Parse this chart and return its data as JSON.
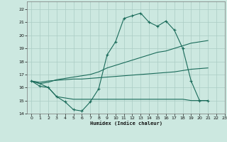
{
  "xlabel": "Humidex (Indice chaleur)",
  "background_color": "#cce8e0",
  "grid_color": "#aaccC4",
  "line_color": "#1a6b5a",
  "xlim": [
    -0.5,
    23
  ],
  "ylim": [
    14,
    22.6
  ],
  "xticks": [
    0,
    1,
    2,
    3,
    4,
    5,
    6,
    7,
    8,
    9,
    10,
    11,
    12,
    13,
    14,
    15,
    16,
    17,
    18,
    19,
    20,
    21,
    22,
    23
  ],
  "yticks": [
    14,
    15,
    16,
    17,
    18,
    19,
    20,
    21,
    22
  ],
  "line1_y": [
    16.5,
    16.1,
    16.0,
    15.3,
    14.9,
    14.3,
    14.2,
    14.9,
    15.9,
    18.5,
    19.5,
    21.3,
    21.5,
    21.7,
    21.0,
    20.7,
    21.1,
    20.4,
    19.0,
    16.5,
    15.0,
    15.0,
    null,
    null
  ],
  "line2_y": [
    16.5,
    16.3,
    16.4,
    16.6,
    16.7,
    16.8,
    16.9,
    17.0,
    17.2,
    17.5,
    17.7,
    17.9,
    18.1,
    18.3,
    18.5,
    18.7,
    18.8,
    19.0,
    19.2,
    19.4,
    19.5,
    19.6,
    null,
    null
  ],
  "line3_y": [
    16.5,
    16.4,
    16.5,
    16.55,
    16.6,
    16.65,
    16.65,
    16.7,
    16.75,
    16.8,
    16.85,
    16.9,
    16.95,
    17.0,
    17.05,
    17.1,
    17.15,
    17.2,
    17.3,
    17.4,
    17.45,
    17.5,
    null,
    null
  ],
  "line4_y": [
    16.5,
    16.3,
    16.0,
    15.3,
    15.2,
    15.1,
    15.1,
    15.1,
    15.1,
    15.1,
    15.1,
    15.1,
    15.1,
    15.1,
    15.1,
    15.1,
    15.1,
    15.1,
    15.1,
    15.0,
    15.0,
    15.0,
    null,
    null
  ]
}
